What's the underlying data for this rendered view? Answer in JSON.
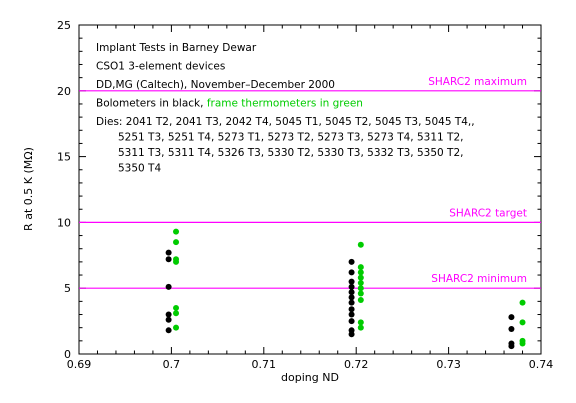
{
  "chart_data": {
    "type": "scatter",
    "xlabel": "doping ND",
    "ylabel": "R at 0.5 K (MΩ)",
    "xlim": [
      0.69,
      0.74
    ],
    "ylim": [
      0,
      25
    ],
    "x_ticks": [
      0.69,
      0.7,
      0.71,
      0.72,
      0.73,
      0.74
    ],
    "x_tick_labels": [
      "0.69",
      "0.7",
      "0.71",
      "0.72",
      "0.73",
      "0.74"
    ],
    "y_ticks": [
      0,
      5,
      10,
      15,
      20,
      25
    ],
    "y_tick_labels": [
      "0",
      "5",
      "10",
      "15",
      "20",
      "25"
    ],
    "grid": false,
    "annotations": [
      {
        "text": "Implant Tests in Barney Dewar",
        "color": "#000000"
      },
      {
        "text": "CSO1 3-element devices",
        "color": "#000000"
      },
      {
        "text": "DD,MG (Caltech), November–December 2000",
        "color": "#000000"
      }
    ],
    "legend_line": [
      {
        "text": "Bolometers in black, ",
        "color": "#000000"
      },
      {
        "text": "frame thermometers in green",
        "color": "#00cc00"
      }
    ],
    "dies_text": [
      "Dies:  2041 T2,  2041 T3,  2042 T4,  5045 T1,  5045 T2,  5045 T3,  5045 T4,,",
      "5251 T3,  5251 T4,  5273 T1,  5273 T2,  5273 T3,  5273 T4,  5311 T2,",
      "5311 T3,  5311 T4,  5326 T3,  5330 T2,  5330 T3,  5332 T3,  5350 T2,",
      "5350 T4"
    ],
    "reference_lines": [
      {
        "y": 20,
        "label": "SHARC2 maximum",
        "color": "#ff00ff"
      },
      {
        "y": 10,
        "label": "SHARC2 target",
        "color": "#ff00ff"
      },
      {
        "y": 5,
        "label": "SHARC2 minimum",
        "color": "#ff00ff"
      }
    ],
    "series": [
      {
        "name": "Bolometers",
        "color": "#000000",
        "points": [
          [
            0.6997,
            7.7
          ],
          [
            0.6997,
            7.2
          ],
          [
            0.6997,
            5.1
          ],
          [
            0.6997,
            3.0
          ],
          [
            0.6997,
            2.6
          ],
          [
            0.6997,
            1.8
          ],
          [
            0.7195,
            7.0
          ],
          [
            0.7195,
            6.2
          ],
          [
            0.7195,
            5.5
          ],
          [
            0.7195,
            5.1
          ],
          [
            0.7195,
            4.7
          ],
          [
            0.7195,
            4.3
          ],
          [
            0.7195,
            3.9
          ],
          [
            0.7195,
            3.4
          ],
          [
            0.7195,
            3.0
          ],
          [
            0.7195,
            2.5
          ],
          [
            0.7195,
            1.8
          ],
          [
            0.7195,
            1.5
          ],
          [
            0.7368,
            2.8
          ],
          [
            0.7368,
            1.9
          ],
          [
            0.7368,
            0.8
          ],
          [
            0.7368,
            0.6
          ]
        ]
      },
      {
        "name": "Frame thermometers",
        "color": "#00cc00",
        "points": [
          [
            0.7005,
            9.3
          ],
          [
            0.7005,
            8.5
          ],
          [
            0.7005,
            7.2
          ],
          [
            0.7005,
            7.0
          ],
          [
            0.7005,
            3.5
          ],
          [
            0.7005,
            3.1
          ],
          [
            0.7005,
            2.0
          ],
          [
            0.7205,
            8.3
          ],
          [
            0.7205,
            6.6
          ],
          [
            0.7205,
            6.2
          ],
          [
            0.7205,
            5.8
          ],
          [
            0.7205,
            5.4
          ],
          [
            0.7205,
            5.0
          ],
          [
            0.7205,
            4.6
          ],
          [
            0.7205,
            4.1
          ],
          [
            0.7205,
            2.4
          ],
          [
            0.7205,
            2.0
          ],
          [
            0.738,
            3.9
          ],
          [
            0.738,
            2.4
          ],
          [
            0.738,
            1.0
          ],
          [
            0.738,
            0.8
          ]
        ]
      }
    ]
  }
}
